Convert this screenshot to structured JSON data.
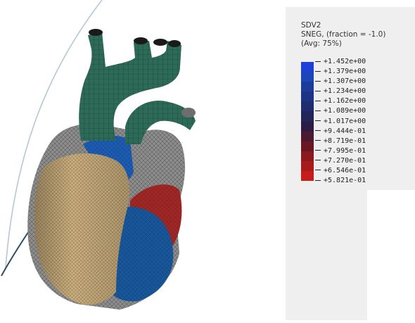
{
  "legend": {
    "variable": "SDV2",
    "section_point": "SNEG, (fraction = -1.0)",
    "averaging": "(Avg: 75%)",
    "values": [
      "+1.452e+00",
      "+1.379e+00",
      "+1.307e+00",
      "+1.234e+00",
      "+1.162e+00",
      "+1.089e+00",
      "+1.017e+00",
      "+9.444e-01",
      "+8.719e-01",
      "+7.995e-01",
      "+7.270e-01",
      "+6.546e-01",
      "+5.821e-01"
    ],
    "band_colors": [
      "#1f3fd8",
      "#1c45b8",
      "#1a3d9c",
      "#1d3486",
      "#1f2d6e",
      "#22255a",
      "#2a1c44",
      "#4a1a30",
      "#6a1724",
      "#8a1a1e",
      "#a81b1b",
      "#c81c1c"
    ]
  },
  "model": {
    "name": "heart",
    "colors": {
      "vessels": "#2e6a58",
      "atria": "#8a8a8a",
      "ventricle_left": "#c9ad7d",
      "ventricle_right": "#17579a",
      "red_region": "#a52620",
      "outline": "#1a1a1a"
    }
  }
}
